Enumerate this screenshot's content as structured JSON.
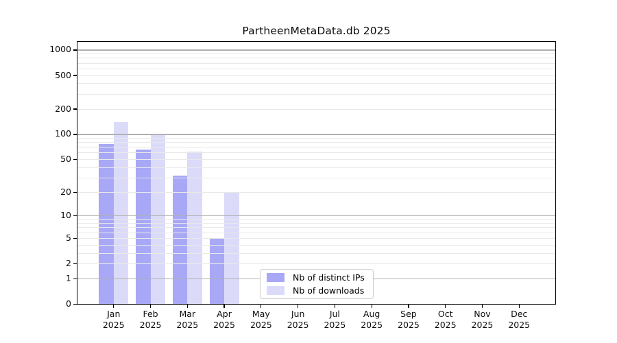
{
  "chart_data": {
    "type": "bar",
    "title": "PartheenMetaData.db 2025",
    "year_label": "2025",
    "categories": [
      "Jan",
      "Feb",
      "Mar",
      "Apr",
      "May",
      "Jun",
      "Jul",
      "Aug",
      "Sep",
      "Oct",
      "Nov",
      "Dec"
    ],
    "series": [
      {
        "name": "Nb of distinct IPs",
        "color": "#a8a8f6",
        "values": [
          77,
          66,
          32,
          5,
          null,
          null,
          null,
          null,
          null,
          null,
          null,
          null
        ]
      },
      {
        "name": "Nb of downloads",
        "color": "#dbdbf9",
        "values": [
          140,
          100,
          62,
          20,
          null,
          null,
          null,
          null,
          null,
          null,
          null,
          null
        ]
      }
    ],
    "xlabel": "",
    "ylabel": "",
    "y_scale": "log10(1+y)",
    "ylim": [
      0,
      1270
    ],
    "y_ticks": [
      0,
      1,
      2,
      5,
      10,
      20,
      50,
      100,
      200,
      500,
      1000
    ],
    "y_gridlines_major": [
      1,
      10,
      100,
      1000
    ],
    "y_gridlines_minor": [
      2,
      3,
      4,
      5,
      6,
      7,
      8,
      9,
      20,
      30,
      40,
      50,
      60,
      70,
      80,
      90,
      200,
      300,
      400,
      500,
      600,
      700,
      800,
      900
    ],
    "grid": true,
    "legend_position": "lower center"
  },
  "legend": {
    "items": [
      {
        "label": "Nb of distinct IPs",
        "color": "#a8a8f6"
      },
      {
        "label": "Nb of downloads",
        "color": "#dbdbf9"
      }
    ]
  },
  "colors": {
    "bar_ips": "#a8a8f6",
    "bar_downloads": "#dbdbf9",
    "grid_major": "#b0b0b0",
    "grid_minor": "#e9e9e9",
    "axis": "#000000",
    "legend_border": "#cccccc",
    "background": "#ffffff"
  }
}
